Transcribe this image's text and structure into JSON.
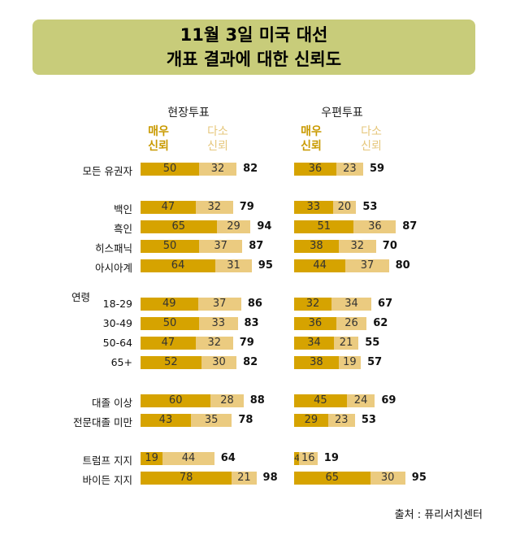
{
  "title": {
    "line1": "11월 3일 미국 대선",
    "line2": "개표 결과에 대한 신뢰도"
  },
  "legend": {
    "very": "매우\n신뢰",
    "somewhat": "다소\n신뢰"
  },
  "colors": {
    "very": "#d6a300",
    "somewhat": "#ebcb80",
    "title_bg": "#c8cc7a"
  },
  "source": "출처 : 퓨리서치센터",
  "chart_data": {
    "type": "bar",
    "stacked": true,
    "title": "11월 3일 미국 대선 개표 결과에 대한 신뢰도",
    "panels": [
      "현장투표",
      "우편투표"
    ],
    "series_names": [
      "매우 신뢰",
      "다소 신뢰"
    ],
    "groups": [
      {
        "label": "",
        "rows": [
          {
            "label": "모든 유권자",
            "in_person": [
              50,
              32,
              82
            ],
            "mail": [
              36,
              23,
              59
            ]
          }
        ]
      },
      {
        "label": "",
        "rows": [
          {
            "label": "백인",
            "in_person": [
              47,
              32,
              79
            ],
            "mail": [
              33,
              20,
              53
            ]
          },
          {
            "label": "흑인",
            "in_person": [
              65,
              29,
              94
            ],
            "mail": [
              51,
              36,
              87
            ]
          },
          {
            "label": "히스패닉",
            "in_person": [
              50,
              37,
              87
            ],
            "mail": [
              38,
              32,
              70
            ]
          },
          {
            "label": "아시아계",
            "in_person": [
              64,
              31,
              95
            ],
            "mail": [
              44,
              37,
              80
            ]
          }
        ]
      },
      {
        "label": "연령",
        "rows": [
          {
            "label": "18-29",
            "in_person": [
              49,
              37,
              86
            ],
            "mail": [
              32,
              34,
              67
            ]
          },
          {
            "label": "30-49",
            "in_person": [
              50,
              33,
              83
            ],
            "mail": [
              36,
              26,
              62
            ]
          },
          {
            "label": "50-64",
            "in_person": [
              47,
              32,
              79
            ],
            "mail": [
              34,
              21,
              55
            ]
          },
          {
            "label": "65+",
            "in_person": [
              52,
              30,
              82
            ],
            "mail": [
              38,
              19,
              57
            ]
          }
        ]
      },
      {
        "label": "",
        "rows": [
          {
            "label": "대졸 이상",
            "in_person": [
              60,
              28,
              88
            ],
            "mail": [
              45,
              24,
              69
            ]
          },
          {
            "label": "전문대졸 미만",
            "in_person": [
              43,
              35,
              78
            ],
            "mail": [
              29,
              23,
              53
            ]
          }
        ]
      },
      {
        "label": "",
        "rows": [
          {
            "label": "트럼프 지지",
            "in_person": [
              19,
              44,
              64
            ],
            "mail": [
              4,
              16,
              19
            ]
          },
          {
            "label": "바이든 지지",
            "in_person": [
              78,
              21,
              98
            ],
            "mail": [
              65,
              30,
              95
            ]
          }
        ]
      }
    ]
  }
}
